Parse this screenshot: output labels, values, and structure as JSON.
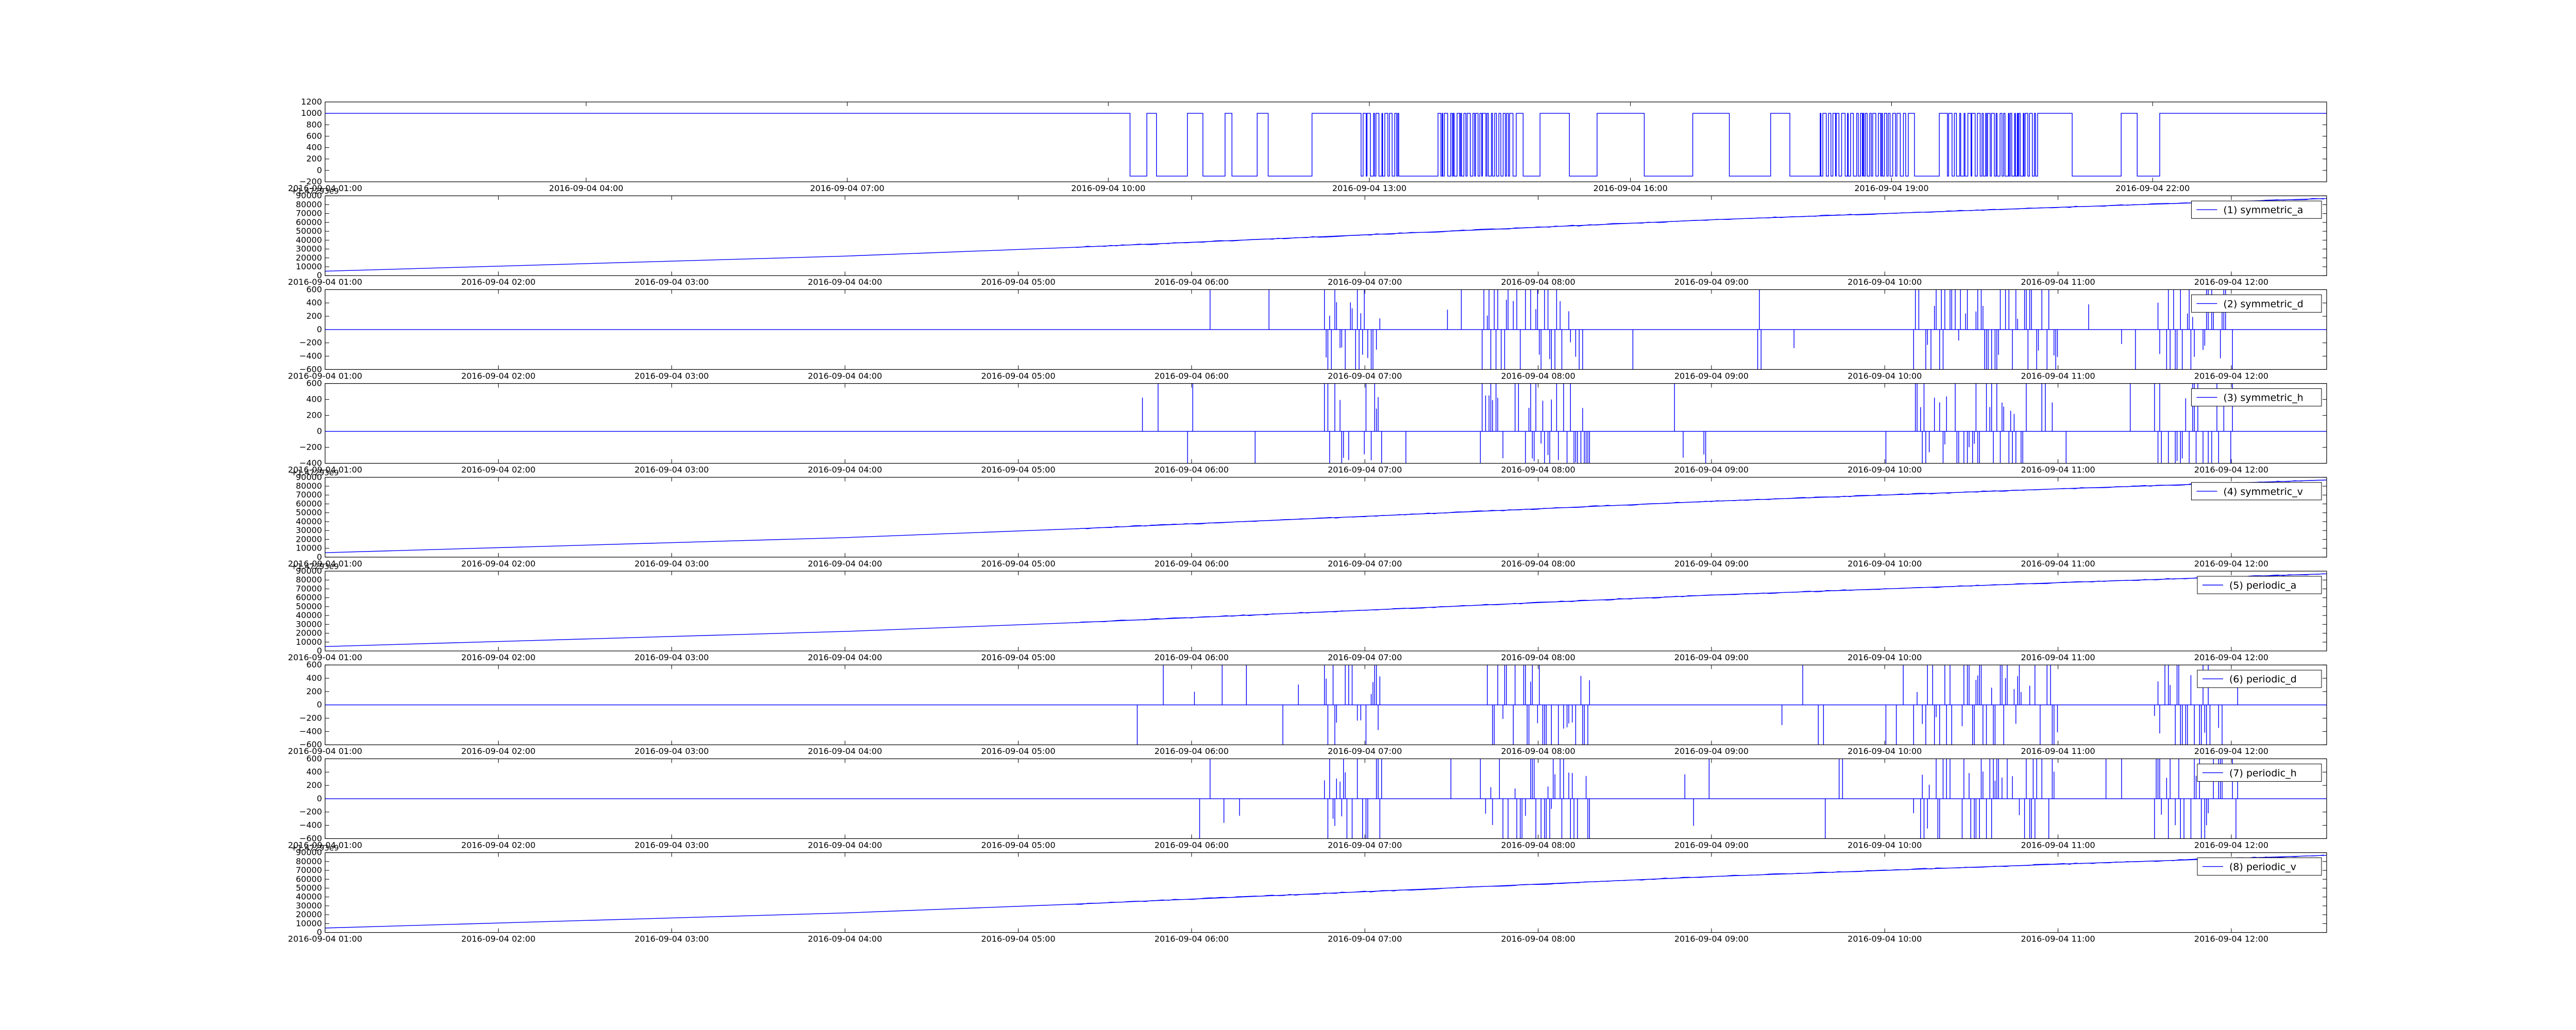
{
  "figure": {
    "line_color": "#0000ff",
    "background": "#ffffff",
    "frame_color": "#000000"
  },
  "chart_data": [
    {
      "type": "line",
      "panel": 0,
      "legend": "",
      "offset_label": "",
      "ylim": [
        -200,
        1200
      ],
      "yticks": [
        -200,
        0,
        200,
        400,
        600,
        800,
        1000,
        1200
      ],
      "ytick_labels": [
        "−200",
        "0",
        "200",
        "400",
        "600",
        "800",
        "1000",
        "1200"
      ],
      "xlim": [
        "2016-09-04 01:00",
        "2016-09-05 00:00"
      ],
      "xticks": [
        "2016-09-04 01:00",
        "2016-09-04 04:00",
        "2016-09-04 07:00",
        "2016-09-04 10:00",
        "2016-09-04 13:00",
        "2016-09-04 16:00",
        "2016-09-04 19:00",
        "2016-09-04 22:00"
      ],
      "series": [
        {
          "pattern": "state",
          "baseline": 1000,
          "low": -100,
          "burst_start": "2016-09-04 10:15",
          "end": "2016-09-04 22:05",
          "points": []
        }
      ]
    },
    {
      "type": "line",
      "panel": 1,
      "legend": "(1) symmetric_a",
      "offset_label": "+1.47293e9",
      "ylim": [
        0,
        90000
      ],
      "yticks": [
        0,
        10000,
        20000,
        30000,
        40000,
        50000,
        60000,
        70000,
        80000,
        90000
      ],
      "ytick_labels": [
        "0",
        "10000",
        "20000",
        "30000",
        "40000",
        "50000",
        "60000",
        "70000",
        "80000",
        "90000"
      ],
      "xlim": [
        "2016-09-04 01:00",
        "2016-09-04 12:33"
      ],
      "xticks": [
        "2016-09-04 01:00",
        "2016-09-04 02:00",
        "2016-09-04 03:00",
        "2016-09-04 04:00",
        "2016-09-04 05:00",
        "2016-09-04 06:00",
        "2016-09-04 07:00",
        "2016-09-04 08:00",
        "2016-09-04 09:00",
        "2016-09-04 10:00",
        "2016-09-04 11:00",
        "2016-09-04 12:00"
      ],
      "series": [
        {
          "name": "(1) symmetric_a",
          "pattern": "ramp",
          "points": [
            [
              "2016-09-04 01:00",
              5000
            ],
            [
              "2016-09-04 04:00",
              22000
            ],
            [
              "2016-09-04 05:20",
              32000
            ],
            [
              "2016-09-04 07:00",
              46000
            ],
            [
              "2016-09-04 09:00",
              63000
            ],
            [
              "2016-09-04 11:00",
              77000
            ],
            [
              "2016-09-04 12:33",
              87000
            ]
          ]
        }
      ]
    },
    {
      "type": "line",
      "panel": 2,
      "legend": "(2) symmetric_d",
      "offset_label": "",
      "ylim": [
        -600,
        600
      ],
      "yticks": [
        -600,
        -400,
        -200,
        0,
        200,
        400,
        600
      ],
      "ytick_labels": [
        "−600",
        "−400",
        "−200",
        "0",
        "200",
        "400",
        "600"
      ],
      "xlim": [
        "2016-09-04 01:00",
        "2016-09-04 12:33"
      ],
      "xticks": [
        "2016-09-04 01:00",
        "2016-09-04 02:00",
        "2016-09-04 03:00",
        "2016-09-04 04:00",
        "2016-09-04 05:00",
        "2016-09-04 06:00",
        "2016-09-04 07:00",
        "2016-09-04 08:00",
        "2016-09-04 09:00",
        "2016-09-04 10:00",
        "2016-09-04 11:00",
        "2016-09-04 12:00"
      ],
      "series": [
        {
          "name": "(2) symmetric_d",
          "pattern": "spikes",
          "baseline": 0,
          "start": "2016-09-04 05:40",
          "end": "2016-09-04 12:05",
          "points": []
        }
      ]
    },
    {
      "type": "line",
      "panel": 3,
      "legend": "(3) symmetric_h",
      "offset_label": "",
      "ylim": [
        -400,
        600
      ],
      "yticks": [
        -400,
        -200,
        0,
        200,
        400,
        600
      ],
      "ytick_labels": [
        "−400",
        "−200",
        "0",
        "200",
        "400",
        "600"
      ],
      "xlim": [
        "2016-09-04 01:00",
        "2016-09-04 12:33"
      ],
      "xticks": [
        "2016-09-04 01:00",
        "2016-09-04 02:00",
        "2016-09-04 03:00",
        "2016-09-04 04:00",
        "2016-09-04 05:00",
        "2016-09-04 06:00",
        "2016-09-04 07:00",
        "2016-09-04 08:00",
        "2016-09-04 09:00",
        "2016-09-04 10:00",
        "2016-09-04 11:00",
        "2016-09-04 12:00"
      ],
      "series": [
        {
          "name": "(3) symmetric_h",
          "pattern": "spikes",
          "baseline": 0,
          "start": "2016-09-04 05:40",
          "end": "2016-09-04 12:05",
          "points": []
        }
      ]
    },
    {
      "type": "line",
      "panel": 4,
      "legend": "(4) symmetric_v",
      "offset_label": "+1.47293e9",
      "ylim": [
        0,
        90000
      ],
      "yticks": [
        0,
        10000,
        20000,
        30000,
        40000,
        50000,
        60000,
        70000,
        80000,
        90000
      ],
      "ytick_labels": [
        "0",
        "10000",
        "20000",
        "30000",
        "40000",
        "50000",
        "60000",
        "70000",
        "80000",
        "90000"
      ],
      "xlim": [
        "2016-09-04 01:00",
        "2016-09-04 12:33"
      ],
      "xticks": [
        "2016-09-04 01:00",
        "2016-09-04 02:00",
        "2016-09-04 03:00",
        "2016-09-04 04:00",
        "2016-09-04 05:00",
        "2016-09-04 06:00",
        "2016-09-04 07:00",
        "2016-09-04 08:00",
        "2016-09-04 09:00",
        "2016-09-04 10:00",
        "2016-09-04 11:00",
        "2016-09-04 12:00"
      ],
      "series": [
        {
          "name": "(4) symmetric_v",
          "pattern": "ramp",
          "points": [
            [
              "2016-09-04 01:00",
              5000
            ],
            [
              "2016-09-04 04:00",
              22000
            ],
            [
              "2016-09-04 05:20",
              32000
            ],
            [
              "2016-09-04 07:00",
              46000
            ],
            [
              "2016-09-04 09:00",
              63000
            ],
            [
              "2016-09-04 11:00",
              77000
            ],
            [
              "2016-09-04 12:33",
              87000
            ]
          ]
        }
      ]
    },
    {
      "type": "line",
      "panel": 5,
      "legend": "(5) periodic_a",
      "offset_label": "+1.47293e9",
      "ylim": [
        0,
        90000
      ],
      "yticks": [
        0,
        10000,
        20000,
        30000,
        40000,
        50000,
        60000,
        70000,
        80000,
        90000
      ],
      "ytick_labels": [
        "0",
        "10000",
        "20000",
        "30000",
        "40000",
        "50000",
        "60000",
        "70000",
        "80000",
        "90000"
      ],
      "xlim": [
        "2016-09-04 01:00",
        "2016-09-04 12:33"
      ],
      "xticks": [
        "2016-09-04 01:00",
        "2016-09-04 02:00",
        "2016-09-04 03:00",
        "2016-09-04 04:00",
        "2016-09-04 05:00",
        "2016-09-04 06:00",
        "2016-09-04 07:00",
        "2016-09-04 08:00",
        "2016-09-04 09:00",
        "2016-09-04 10:00",
        "2016-09-04 11:00",
        "2016-09-04 12:00"
      ],
      "series": [
        {
          "name": "(5) periodic_a",
          "pattern": "ramp",
          "points": [
            [
              "2016-09-04 01:00",
              5000
            ],
            [
              "2016-09-04 04:00",
              22000
            ],
            [
              "2016-09-04 05:20",
              32000
            ],
            [
              "2016-09-04 07:00",
              46000
            ],
            [
              "2016-09-04 09:00",
              63000
            ],
            [
              "2016-09-04 11:00",
              77000
            ],
            [
              "2016-09-04 12:33",
              87000
            ]
          ]
        }
      ]
    },
    {
      "type": "line",
      "panel": 6,
      "legend": "(6) periodic_d",
      "offset_label": "",
      "ylim": [
        -600,
        600
      ],
      "yticks": [
        -600,
        -400,
        -200,
        0,
        200,
        400,
        600
      ],
      "ytick_labels": [
        "−600",
        "−400",
        "−200",
        "0",
        "200",
        "400",
        "600"
      ],
      "xlim": [
        "2016-09-04 01:00",
        "2016-09-04 12:33"
      ],
      "xticks": [
        "2016-09-04 01:00",
        "2016-09-04 02:00",
        "2016-09-04 03:00",
        "2016-09-04 04:00",
        "2016-09-04 05:00",
        "2016-09-04 06:00",
        "2016-09-04 07:00",
        "2016-09-04 08:00",
        "2016-09-04 09:00",
        "2016-09-04 10:00",
        "2016-09-04 11:00",
        "2016-09-04 12:00"
      ],
      "series": [
        {
          "name": "(6) periodic_d",
          "pattern": "spikes",
          "baseline": 0,
          "start": "2016-09-04 05:40",
          "end": "2016-09-04 12:05",
          "points": []
        }
      ]
    },
    {
      "type": "line",
      "panel": 7,
      "legend": "(7) periodic_h",
      "offset_label": "",
      "ylim": [
        -600,
        600
      ],
      "yticks": [
        -600,
        -400,
        -200,
        0,
        200,
        400,
        600
      ],
      "ytick_labels": [
        "−600",
        "−400",
        "−200",
        "0",
        "200",
        "400",
        "600"
      ],
      "xlim": [
        "2016-09-04 01:00",
        "2016-09-04 12:33"
      ],
      "xticks": [
        "2016-09-04 01:00",
        "2016-09-04 02:00",
        "2016-09-04 03:00",
        "2016-09-04 04:00",
        "2016-09-04 05:00",
        "2016-09-04 06:00",
        "2016-09-04 07:00",
        "2016-09-04 08:00",
        "2016-09-04 09:00",
        "2016-09-04 10:00",
        "2016-09-04 11:00",
        "2016-09-04 12:00"
      ],
      "series": [
        {
          "name": "(7) periodic_h",
          "pattern": "spikes",
          "baseline": 0,
          "start": "2016-09-04 05:40",
          "end": "2016-09-04 12:05",
          "points": []
        }
      ]
    },
    {
      "type": "line",
      "panel": 8,
      "legend": "(8) periodic_v",
      "offset_label": "+1.47293e9",
      "ylim": [
        0,
        90000
      ],
      "yticks": [
        0,
        10000,
        20000,
        30000,
        40000,
        50000,
        60000,
        70000,
        80000,
        90000
      ],
      "ytick_labels": [
        "0",
        "10000",
        "20000",
        "30000",
        "40000",
        "50000",
        "60000",
        "70000",
        "80000",
        "90000"
      ],
      "xlim": [
        "2016-09-04 01:00",
        "2016-09-04 12:33"
      ],
      "xticks": [
        "2016-09-04 01:00",
        "2016-09-04 02:00",
        "2016-09-04 03:00",
        "2016-09-04 04:00",
        "2016-09-04 05:00",
        "2016-09-04 06:00",
        "2016-09-04 07:00",
        "2016-09-04 08:00",
        "2016-09-04 09:00",
        "2016-09-04 10:00",
        "2016-09-04 11:00",
        "2016-09-04 12:00"
      ],
      "series": [
        {
          "name": "(8) periodic_v",
          "pattern": "ramp",
          "points": [
            [
              "2016-09-04 01:00",
              5000
            ],
            [
              "2016-09-04 04:00",
              22000
            ],
            [
              "2016-09-04 05:20",
              32000
            ],
            [
              "2016-09-04 07:00",
              46000
            ],
            [
              "2016-09-04 09:00",
              63000
            ],
            [
              "2016-09-04 11:00",
              77000
            ],
            [
              "2016-09-04 12:33",
              87000
            ]
          ]
        }
      ]
    }
  ]
}
